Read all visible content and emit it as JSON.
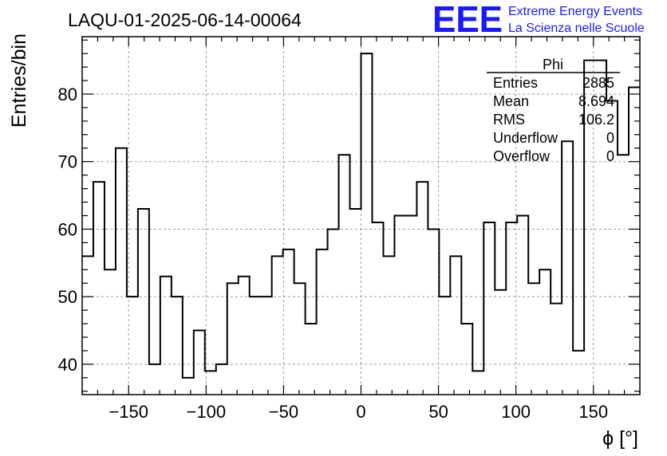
{
  "title": "LAQU-01-2025-06-14-00064",
  "logo": {
    "text": "EEE",
    "line1": "Extreme Energy Events",
    "line2": "La Scienza nelle Scuole",
    "color": "#1a1aff"
  },
  "stats": {
    "name": "Phi",
    "rows": [
      {
        "label": "Entries",
        "value": "2885"
      },
      {
        "label": "Mean",
        "value": "8.694"
      },
      {
        "label": "RMS",
        "value": "106.2"
      },
      {
        "label": "Underflow",
        "value": "0"
      },
      {
        "label": "Overflow",
        "value": "0"
      }
    ]
  },
  "chart_data": {
    "type": "histogram",
    "title": "LAQU-01-2025-06-14-00064",
    "xlabel": "ϕ [°]",
    "ylabel": "Entries/bin",
    "xlim": [
      -180,
      180
    ],
    "ylim": [
      35.5,
      88.5
    ],
    "bin_width": 7.2,
    "x_ticks": [
      -150,
      -100,
      -50,
      0,
      50,
      100,
      150
    ],
    "x_tick_labels": [
      "−150",
      "−100",
      "−50",
      "0",
      "50",
      "100",
      "150"
    ],
    "y_ticks": [
      40,
      50,
      60,
      70,
      80
    ],
    "y_tick_labels": [
      "40",
      "50",
      "60",
      "70",
      "80"
    ],
    "grid": true,
    "values": [
      56,
      67,
      54,
      72,
      50,
      63,
      40,
      53,
      50,
      38,
      45,
      39,
      40,
      52,
      53,
      50,
      50,
      56,
      57,
      52,
      46,
      57,
      60,
      71,
      63,
      86,
      61,
      56,
      62,
      62,
      67,
      60,
      50,
      56,
      46,
      39,
      61,
      51,
      61,
      62,
      52,
      54,
      49,
      73,
      42,
      85,
      85,
      79,
      71,
      81
    ]
  }
}
